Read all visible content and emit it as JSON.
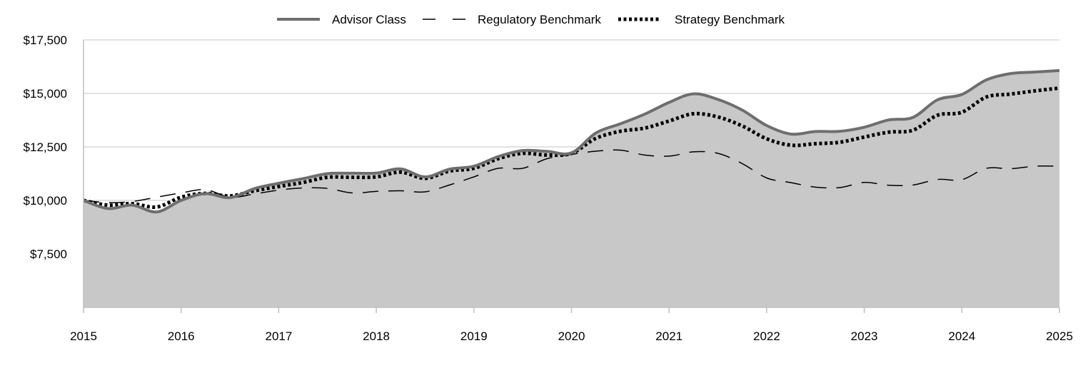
{
  "chart_data": {
    "type": "area",
    "title": "",
    "xlabel": "",
    "ylabel": "",
    "x_ticks": [
      "2015",
      "2016",
      "2017",
      "2018",
      "2019",
      "2020",
      "2021",
      "2022",
      "2023",
      "2024",
      "2025"
    ],
    "y_ticks": [
      {
        "value": 7500,
        "label": "$7,500"
      },
      {
        "value": 10000,
        "label": "$10,000"
      },
      {
        "value": 12500,
        "label": "$12,500"
      },
      {
        "value": 15000,
        "label": "$15,000"
      },
      {
        "value": 17500,
        "label": "$17,500"
      }
    ],
    "xlim": [
      2015,
      2025
    ],
    "ylim": [
      5000,
      17500
    ],
    "grid": true,
    "legend_position": "top-center",
    "colors": {
      "area_fill": "#c8c8c8",
      "advisor_line": "#6e6e6e",
      "benchmark_line": "#000000",
      "grid": "#d9d9d9",
      "axis": "#bfbfbf"
    },
    "series": [
      {
        "name": "Advisor Class",
        "style": "solid-area",
        "x": [
          2015.0,
          2015.25,
          2015.5,
          2015.75,
          2016.0,
          2016.25,
          2016.5,
          2016.75,
          2017.0,
          2017.25,
          2017.5,
          2017.75,
          2018.0,
          2018.25,
          2018.5,
          2018.75,
          2019.0,
          2019.25,
          2019.5,
          2019.75,
          2020.0,
          2020.25,
          2020.5,
          2020.75,
          2021.0,
          2021.25,
          2021.5,
          2021.75,
          2022.0,
          2022.25,
          2022.5,
          2022.75,
          2023.0,
          2023.25,
          2023.5,
          2023.75,
          2024.0,
          2024.25,
          2024.5,
          2024.75,
          2025.0
        ],
        "values": [
          10000,
          9620,
          9780,
          9460,
          10000,
          10320,
          10130,
          10550,
          10800,
          11020,
          11250,
          11270,
          11280,
          11470,
          11100,
          11460,
          11600,
          12050,
          12330,
          12290,
          12220,
          13150,
          13580,
          14030,
          14580,
          14980,
          14720,
          14220,
          13500,
          13100,
          13220,
          13230,
          13420,
          13760,
          13880,
          14700,
          14950,
          15630,
          15930,
          16000,
          16070
        ]
      },
      {
        "name": "Regulatory Benchmark",
        "style": "dashed",
        "x": [
          2015.0,
          2015.25,
          2015.5,
          2015.75,
          2016.0,
          2016.25,
          2016.5,
          2016.75,
          2017.0,
          2017.25,
          2017.5,
          2017.75,
          2018.0,
          2018.25,
          2018.5,
          2018.75,
          2019.0,
          2019.25,
          2019.5,
          2019.75,
          2020.0,
          2020.25,
          2020.5,
          2020.75,
          2021.0,
          2021.25,
          2021.5,
          2021.75,
          2022.0,
          2022.25,
          2022.5,
          2022.75,
          2023.0,
          2023.25,
          2023.5,
          2023.75,
          2024.0,
          2024.25,
          2024.5,
          2024.75,
          2025.0
        ],
        "values": [
          10000,
          9900,
          9950,
          10150,
          10350,
          10500,
          10150,
          10300,
          10480,
          10580,
          10560,
          10350,
          10420,
          10450,
          10400,
          10720,
          11100,
          11500,
          11500,
          11950,
          12150,
          12300,
          12350,
          12120,
          12070,
          12270,
          12200,
          11720,
          11050,
          10830,
          10620,
          10600,
          10840,
          10710,
          10720,
          10980,
          10970,
          11500,
          11480,
          11600,
          11600
        ]
      },
      {
        "name": "Strategy Benchmark",
        "style": "dotted",
        "x": [
          2015.0,
          2015.25,
          2015.5,
          2015.75,
          2016.0,
          2016.25,
          2016.5,
          2016.75,
          2017.0,
          2017.25,
          2017.5,
          2017.75,
          2018.0,
          2018.25,
          2018.5,
          2018.75,
          2019.0,
          2019.25,
          2019.5,
          2019.75,
          2020.0,
          2020.25,
          2020.5,
          2020.75,
          2021.0,
          2021.25,
          2021.5,
          2021.75,
          2022.0,
          2022.25,
          2022.5,
          2022.75,
          2023.0,
          2023.25,
          2023.5,
          2023.75,
          2024.0,
          2024.25,
          2024.5,
          2024.75,
          2025.0
        ],
        "values": [
          10000,
          9780,
          9850,
          9690,
          10150,
          10330,
          10210,
          10450,
          10650,
          10840,
          11080,
          11080,
          11100,
          11320,
          11030,
          11370,
          11500,
          11950,
          12200,
          12120,
          12200,
          12900,
          13230,
          13380,
          13710,
          14050,
          13900,
          13480,
          12880,
          12580,
          12650,
          12720,
          12960,
          13190,
          13280,
          13980,
          14120,
          14830,
          14970,
          15120,
          15250
        ]
      }
    ]
  }
}
